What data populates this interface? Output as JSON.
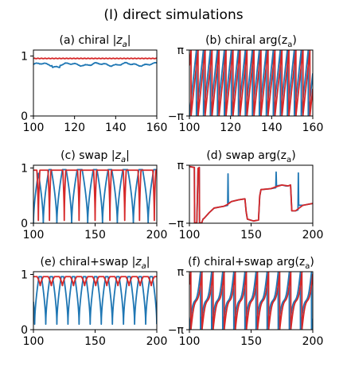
{
  "figure_title": "(I) direct simulations",
  "colors": {
    "series_a": "#1f77b4",
    "series_b": "#d62728"
  },
  "chart_data": [
    {
      "id": "a",
      "type": "line",
      "kind": "mod",
      "title": "(a) chiral |z_a|",
      "title_parts": [
        "(a) chiral |",
        "z",
        "a",
        "|"
      ],
      "xlim": [
        100,
        160
      ],
      "ylim": [
        0,
        1.1
      ],
      "x_ticks": [
        100,
        120,
        140,
        160
      ],
      "y_ticks": [
        0,
        1
      ],
      "y_tick_labels": [
        "0",
        "1"
      ],
      "series": [
        {
          "color": "#d62728",
          "mean": 0.96,
          "description": "flat ~0.96"
        },
        {
          "color": "#1f77b4",
          "mean": 0.86,
          "description": "wiggly ~0.86"
        }
      ]
    },
    {
      "id": "b",
      "type": "line",
      "kind": "phase",
      "title": "(b) chiral arg(z_a)",
      "title_parts": [
        "(b) chiral arg(z",
        "a",
        ")"
      ],
      "xlim": [
        100,
        160
      ],
      "ylim": [
        -3.1416,
        3.1416
      ],
      "x_ticks": [
        100,
        120,
        140,
        160
      ],
      "y_ticks": [
        -3.1416,
        3.1416
      ],
      "y_tick_labels": [
        "−π",
        "π"
      ],
      "series": [
        {
          "color": "#1f77b4",
          "phase_start_x": 100.0,
          "period": 3.4
        },
        {
          "color": "#d62728",
          "phase_start_x": 100.8,
          "period": 3.4
        }
      ]
    },
    {
      "id": "c",
      "type": "line",
      "kind": "dips",
      "title": "(c) swap |z_a|",
      "title_parts": [
        "(c) swap |",
        "z",
        "a",
        "|"
      ],
      "xlim": [
        100,
        200
      ],
      "ylim": [
        0,
        1.05
      ],
      "x_ticks": [
        100,
        150,
        200
      ],
      "y_ticks": [
        0,
        1
      ],
      "y_tick_labels": [
        "0",
        "1"
      ],
      "series": [
        {
          "color": "#1f77b4",
          "top": 0.97,
          "dips": [
            100,
            108,
            119,
            131,
            144,
            156,
            168,
            181,
            193
          ],
          "dip_min": 0.0,
          "dip_width": 4.5
        },
        {
          "color": "#d62728",
          "top": 0.96,
          "dips": [
            104,
            113,
            125,
            137,
            150,
            162,
            174,
            186,
            198
          ],
          "dip_min": 0.05,
          "dip_width": 1.2
        }
      ]
    },
    {
      "id": "d",
      "type": "line",
      "kind": "steps",
      "title": "(d) swap arg(z_a)",
      "title_parts": [
        "(d) swap arg(z",
        "a",
        ")"
      ],
      "xlim": [
        100,
        200
      ],
      "ylim": [
        -3.1416,
        3.1416
      ],
      "x_ticks": [
        100,
        150,
        200
      ],
      "y_ticks": [
        -3.1416,
        3.1416
      ],
      "y_tick_labels": [
        "−π",
        "π"
      ],
      "series": [
        {
          "color": "#1f77b4",
          "points": [
            [
              100,
              3.0
            ],
            [
              104,
              2.9
            ],
            [
              104.2,
              -3.1
            ],
            [
              106,
              -3.1
            ],
            [
              107,
              2.8
            ],
            [
              108,
              2.9
            ],
            [
              108.2,
              -3.1
            ],
            [
              110,
              -3.1
            ],
            [
              111,
              -2.7
            ],
            [
              112,
              -2.6
            ],
            [
              116,
              -2.0
            ],
            [
              120,
              -1.5
            ],
            [
              124,
              -1.4
            ],
            [
              128,
              -1.3
            ],
            [
              131,
              -1.2
            ],
            [
              131.3,
              2.2
            ],
            [
              131.6,
              -1.0
            ],
            [
              134,
              -0.8
            ],
            [
              140,
              -0.6
            ],
            [
              145,
              -0.5
            ],
            [
              146,
              -1.9
            ],
            [
              147,
              -2.7
            ],
            [
              152,
              -2.9
            ],
            [
              156,
              -2.8
            ],
            [
              157,
              -0.2
            ],
            [
              158,
              0.5
            ],
            [
              166,
              0.6
            ],
            [
              170,
              0.7
            ],
            [
              170.3,
              2.4
            ],
            [
              170.6,
              0.9
            ],
            [
              175,
              1.0
            ],
            [
              178,
              0.9
            ],
            [
              180,
              0.9
            ],
            [
              182,
              1.0
            ],
            [
              183,
              -1.8
            ],
            [
              186,
              -1.8
            ],
            [
              188,
              -1.7
            ],
            [
              188.3,
              2.3
            ],
            [
              188.6,
              -1.2
            ],
            [
              192,
              -1.2
            ],
            [
              196,
              -1.1
            ],
            [
              200,
              -1.0
            ]
          ]
        },
        {
          "color": "#d62728",
          "points": [
            [
              100,
              3.0
            ],
            [
              104,
              2.9
            ],
            [
              104.2,
              -3.1
            ],
            [
              106,
              -3.1
            ],
            [
              107,
              2.8
            ],
            [
              108,
              2.9
            ],
            [
              108.2,
              -3.1
            ],
            [
              110,
              -3.1
            ],
            [
              111,
              -2.7
            ],
            [
              112,
              -2.6
            ],
            [
              116,
              -2.0
            ],
            [
              120,
              -1.5
            ],
            [
              124,
              -1.4
            ],
            [
              128,
              -1.3
            ],
            [
              131,
              -1.1
            ],
            [
              134,
              -0.8
            ],
            [
              140,
              -0.6
            ],
            [
              145,
              -0.5
            ],
            [
              146,
              -1.9
            ],
            [
              147,
              -2.7
            ],
            [
              152,
              -2.9
            ],
            [
              156,
              -2.8
            ],
            [
              157,
              -0.2
            ],
            [
              158,
              0.5
            ],
            [
              166,
              0.6
            ],
            [
              170,
              0.8
            ],
            [
              175,
              1.0
            ],
            [
              180,
              0.9
            ],
            [
              182,
              1.0
            ],
            [
              183,
              -1.8
            ],
            [
              186,
              -1.8
            ],
            [
              188,
              -1.6
            ],
            [
              192,
              -1.2
            ],
            [
              196,
              -1.1
            ],
            [
              200,
              -1.0
            ]
          ]
        }
      ]
    },
    {
      "id": "e",
      "type": "line",
      "kind": "dips",
      "title": "(e) chiral+swap |z_a|",
      "title_parts": [
        "(e) chiral+swap |",
        "z",
        "a",
        "|"
      ],
      "xlim": [
        100,
        200
      ],
      "ylim": [
        0,
        1.05
      ],
      "x_ticks": [
        100,
        150,
        200
      ],
      "y_ticks": [
        0,
        1
      ],
      "y_tick_labels": [
        "0",
        "1"
      ],
      "series": [
        {
          "color": "#1f77b4",
          "top": 0.96,
          "dips": [
            101,
            110,
            119,
            128,
            137,
            146,
            155,
            164,
            173,
            182,
            191,
            200
          ],
          "dip_min": 0.1,
          "dip_width": 3.5
        },
        {
          "color": "#d62728",
          "top": 0.96,
          "dips": [
            105.5,
            114.5,
            123.5,
            132.5,
            141.5,
            150.5,
            159.5,
            168.5,
            177.5,
            186.5,
            195.5
          ],
          "dip_min": 0.78,
          "dip_width": 2.5
        }
      ]
    },
    {
      "id": "f",
      "type": "line",
      "kind": "phase",
      "title": "(f) chiral+swap arg(z_a)",
      "title_parts": [
        "(f) chiral+swap arg(z",
        "a",
        ")"
      ],
      "xlim": [
        100,
        200
      ],
      "ylim": [
        -3.1416,
        3.1416
      ],
      "x_ticks": [
        100,
        150,
        200
      ],
      "y_ticks": [
        -3.1416,
        3.1416
      ],
      "y_tick_labels": [
        "−π",
        "π"
      ],
      "series": [
        {
          "color": "#1f77b4",
          "phase_start_x": 100.0,
          "period": 9.0,
          "shaped": true
        },
        {
          "color": "#d62728",
          "phase_start_x": 101.2,
          "period": 9.0,
          "shaped": true
        }
      ]
    }
  ]
}
